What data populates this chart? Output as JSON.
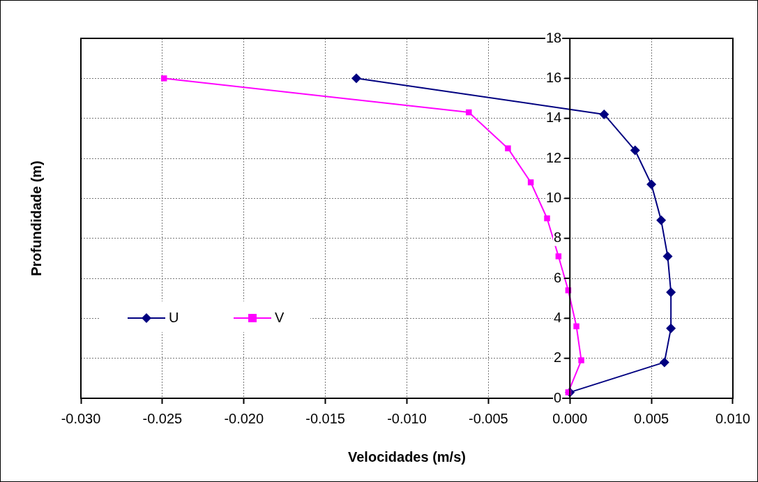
{
  "chart_data": {
    "type": "line",
    "xlabel": "Velocidades (m/s)",
    "ylabel": "Profundidade (m)",
    "series": [
      {
        "name": "U",
        "color": "#000080",
        "marker": "diamond",
        "x": [
          -0.0131,
          0.0021,
          0.004,
          0.005,
          0.0056,
          0.006,
          0.0062,
          0.0062,
          0.0058,
          0.0
        ],
        "values": [
          16.0,
          14.2,
          12.4,
          10.7,
          8.9,
          7.1,
          5.3,
          3.5,
          1.8,
          0.3
        ]
      },
      {
        "name": "V",
        "color": "#ff00ff",
        "marker": "square",
        "x": [
          -0.0249,
          -0.0062,
          -0.0038,
          -0.0024,
          -0.0014,
          -0.0007,
          -0.0001,
          0.0004,
          0.0007,
          -0.0001
        ],
        "values": [
          16.0,
          14.3,
          12.5,
          10.8,
          9.0,
          7.1,
          5.4,
          3.6,
          1.9,
          0.3
        ]
      }
    ],
    "xlim": [
      -0.03,
      0.01
    ],
    "xticks": [
      {
        "value": -0.03,
        "label": "-0.030"
      },
      {
        "value": -0.025,
        "label": "-0.025"
      },
      {
        "value": -0.02,
        "label": "-0.020"
      },
      {
        "value": -0.015,
        "label": "-0.015"
      },
      {
        "value": -0.01,
        "label": "-0.010"
      },
      {
        "value": -0.005,
        "label": "-0.005"
      },
      {
        "value": 0,
        "label": "0.000"
      },
      {
        "value": 0.005,
        "label": "0.005"
      },
      {
        "value": 0.01,
        "label": "0.010"
      }
    ],
    "ylim": [
      0,
      18
    ],
    "yticks": [
      0,
      2,
      4,
      6,
      8,
      10,
      12,
      14,
      16,
      18
    ],
    "grid": true,
    "legend": "bottom left",
    "line_style": "solid"
  }
}
